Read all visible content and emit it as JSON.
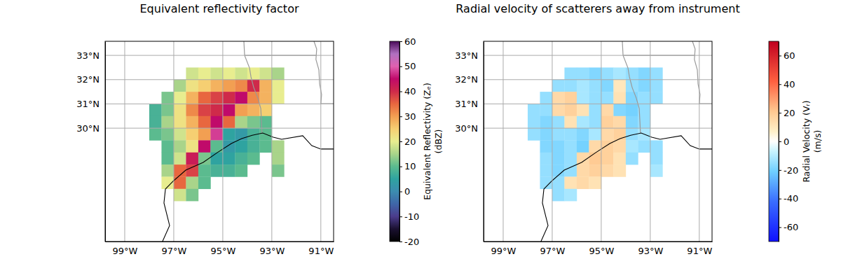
{
  "chart_data": [
    {
      "type": "heatmap",
      "title": "Equivalent reflectivity factor",
      "xlim": [
        -99.8,
        -90.48
      ],
      "ylim": [
        25.33,
        33.58
      ],
      "xticks": [
        {
          "value": -99,
          "label": "99°W"
        },
        {
          "value": -97,
          "label": "97°W"
        },
        {
          "value": -95,
          "label": "95°W"
        },
        {
          "value": -93,
          "label": "93°W"
        },
        {
          "value": -91,
          "label": "91°W"
        }
      ],
      "yticks": [
        {
          "value": 30,
          "label": "30°N"
        },
        {
          "value": 31,
          "label": "31°N"
        },
        {
          "value": 32,
          "label": "32°N"
        },
        {
          "value": 33,
          "label": "33°N"
        }
      ],
      "grid": true,
      "lons": [
        -97.75,
        -97.25,
        -96.75,
        -96.25,
        -95.75,
        -95.25,
        -94.75,
        -94.25,
        -93.75,
        -93.25,
        -92.75
      ],
      "lats": [
        32.25,
        31.75,
        31.25,
        30.75,
        30.25,
        29.75,
        29.25,
        28.75,
        28.25,
        27.75,
        27.25
      ],
      "values": [
        [
          null,
          null,
          null,
          18,
          20,
          18,
          20,
          18,
          20,
          18,
          15
        ],
        [
          null,
          null,
          15,
          22,
          25,
          28,
          30,
          32,
          40,
          28,
          20
        ],
        [
          null,
          12,
          20,
          28,
          35,
          38,
          40,
          45,
          32,
          28,
          20
        ],
        [
          8,
          12,
          22,
          32,
          38,
          40,
          45,
          30,
          28,
          25,
          null
        ],
        [
          8,
          15,
          22,
          28,
          35,
          45,
          35,
          15,
          12,
          10,
          null
        ],
        [
          10,
          12,
          18,
          25,
          30,
          48,
          5,
          3,
          8,
          10,
          null
        ],
        [
          null,
          10,
          15,
          22,
          45,
          10,
          3,
          5,
          8,
          10,
          15
        ],
        [
          null,
          10,
          18,
          42,
          12,
          5,
          5,
          8,
          10,
          null,
          15
        ],
        [
          null,
          15,
          35,
          38,
          10,
          8,
          8,
          10,
          null,
          null,
          12
        ],
        [
          null,
          20,
          35,
          15,
          10,
          null,
          null,
          null,
          null,
          null,
          null
        ],
        [
          null,
          null,
          18,
          12,
          null,
          null,
          null,
          null,
          null,
          null,
          null
        ]
      ],
      "colorbar_label": "Equivalent Reflectivity (Zₑ)\n(dBZ)",
      "colorbar_range": [
        -20,
        60
      ],
      "colorbar_ticks": [
        -20,
        -10,
        0,
        10,
        20,
        30,
        40,
        50,
        60
      ],
      "coastline": {
        "lon": [
          -97.46,
          -97.17,
          -97.4,
          -97.34,
          -97.0,
          -96.51,
          -95.8,
          -95.23,
          -94.65,
          -94.23,
          -93.8,
          -93.37,
          -92.94,
          -92.6,
          -91.74,
          -91.37,
          -91.0,
          -90.48
        ],
        "lat": [
          25.33,
          25.99,
          26.92,
          27.49,
          27.84,
          28.27,
          28.59,
          28.99,
          29.37,
          29.57,
          29.71,
          29.8,
          29.63,
          29.54,
          29.69,
          29.28,
          29.14,
          29.14
        ]
      },
      "borders": [
        {
          "lon": [
            -94.14,
            -94.11,
            -93.91,
            -93.85,
            -93.74,
            -93.57,
            -93.45,
            -93.42,
            -93.4
          ],
          "lat": [
            33.58,
            33.0,
            32.48,
            32.11,
            31.68,
            31.24,
            30.81,
            30.23,
            29.8
          ]
        },
        {
          "lon": [
            -94.11,
            -91.17
          ],
          "lat": [
            33.0,
            33.0
          ]
        },
        {
          "lon": [
            -91.28,
            -91.17,
            -91.2,
            -91.08,
            -91.05,
            -90.97,
            -91.0,
            -90.48
          ],
          "lat": [
            33.58,
            33.26,
            32.83,
            32.4,
            31.82,
            31.39,
            31.01,
            31.01
          ]
        }
      ]
    },
    {
      "type": "heatmap",
      "title": "Radial velocity of scatterers away from instrument",
      "xlim": [
        -99.8,
        -90.48
      ],
      "ylim": [
        25.33,
        33.58
      ],
      "xticks": [
        {
          "value": -99,
          "label": "99°W"
        },
        {
          "value": -97,
          "label": "97°W"
        },
        {
          "value": -95,
          "label": "95°W"
        },
        {
          "value": -93,
          "label": "93°W"
        },
        {
          "value": -91,
          "label": "91°W"
        }
      ],
      "yticks": [
        {
          "value": 30,
          "label": "30°N"
        },
        {
          "value": 31,
          "label": "31°N"
        },
        {
          "value": 32,
          "label": "32°N"
        },
        {
          "value": 33,
          "label": "33°N"
        }
      ],
      "grid": true,
      "lons": [
        -97.75,
        -97.25,
        -96.75,
        -96.25,
        -95.75,
        -95.25,
        -94.75,
        -94.25,
        -93.75,
        -93.25,
        -92.75
      ],
      "lats": [
        32.25,
        31.75,
        31.25,
        30.75,
        30.25,
        29.75,
        29.25,
        28.75,
        28.25,
        27.75,
        27.25
      ],
      "values": [
        [
          null,
          null,
          null,
          -15,
          -15,
          -18,
          -15,
          -12,
          -15,
          -18,
          -15
        ],
        [
          null,
          null,
          -15,
          -15,
          -12,
          -15,
          -18,
          10,
          -15,
          -18,
          -15
        ],
        [
          null,
          -15,
          15,
          18,
          -12,
          -15,
          -15,
          12,
          -18,
          -15,
          -15
        ],
        [
          -15,
          -15,
          15,
          18,
          12,
          -15,
          15,
          -18,
          -20,
          -15,
          null
        ],
        [
          -15,
          -18,
          -15,
          12,
          -12,
          -15,
          18,
          15,
          -18,
          -15,
          null
        ],
        [
          -15,
          -18,
          -15,
          -15,
          -18,
          -12,
          15,
          18,
          -15,
          -12,
          null
        ],
        [
          null,
          -18,
          -18,
          -15,
          -20,
          15,
          18,
          15,
          -12,
          -15,
          -15
        ],
        [
          null,
          -15,
          -18,
          -15,
          15,
          20,
          18,
          12,
          -15,
          null,
          -15
        ],
        [
          null,
          -15,
          -18,
          -15,
          15,
          18,
          15,
          12,
          null,
          null,
          -12
        ],
        [
          null,
          -15,
          -15,
          12,
          15,
          12,
          null,
          null,
          null,
          null,
          null
        ],
        [
          null,
          null,
          -15,
          -12,
          null,
          null,
          null,
          null,
          null,
          null,
          null
        ]
      ],
      "colorbar_label": "Radial Velocity (Vᵣ)\n(m/s)",
      "colorbar_range": [
        -70,
        70
      ],
      "colorbar_ticks": [
        -60,
        -40,
        -20,
        0,
        20,
        40,
        60
      ],
      "coastline": {
        "lon": [
          -97.46,
          -97.17,
          -97.4,
          -97.34,
          -97.0,
          -96.51,
          -95.8,
          -95.23,
          -94.65,
          -94.23,
          -93.8,
          -93.37,
          -92.94,
          -92.6,
          -91.74,
          -91.37,
          -91.0,
          -90.48
        ],
        "lat": [
          25.33,
          25.99,
          26.92,
          27.49,
          27.84,
          28.27,
          28.59,
          28.99,
          29.37,
          29.57,
          29.71,
          29.8,
          29.63,
          29.54,
          29.69,
          29.28,
          29.14,
          29.14
        ]
      },
      "borders": [
        {
          "lon": [
            -94.14,
            -94.11,
            -93.91,
            -93.85,
            -93.74,
            -93.57,
            -93.45,
            -93.42,
            -93.4
          ],
          "lat": [
            33.58,
            33.0,
            32.48,
            32.11,
            31.68,
            31.24,
            30.81,
            30.23,
            29.8
          ]
        },
        {
          "lon": [
            -94.11,
            -91.17
          ],
          "lat": [
            33.0,
            33.0
          ]
        },
        {
          "lon": [
            -91.28,
            -91.17,
            -91.2,
            -91.08,
            -91.05,
            -90.97,
            -91.0,
            -90.48
          ],
          "lat": [
            33.58,
            33.26,
            32.83,
            32.4,
            31.82,
            31.39,
            31.01,
            31.01
          ]
        }
      ]
    }
  ]
}
